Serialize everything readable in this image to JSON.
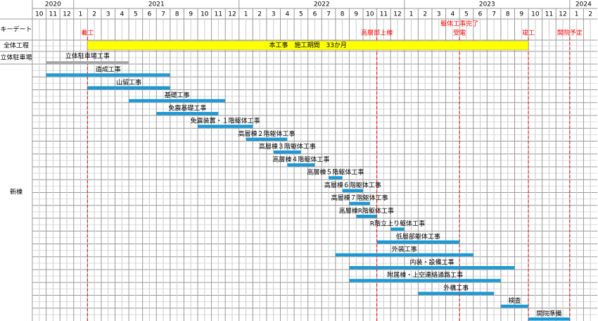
{
  "chart_data": {
    "type": "gantt",
    "years": [
      "2020",
      "2021",
      "2022",
      "2023",
      "2024"
    ],
    "months": [
      10,
      11,
      12,
      1,
      2,
      3,
      4,
      5,
      6,
      7,
      8,
      9,
      10,
      11,
      12,
      1,
      2,
      3,
      4,
      5,
      6,
      7,
      8,
      9,
      10,
      11,
      12,
      1,
      2,
      3,
      4,
      5,
      6,
      7,
      8,
      9,
      10,
      11,
      12,
      1,
      2
    ],
    "xlim": [
      0,
      41
    ],
    "keydate_label": "キーデート",
    "milestones": [
      {
        "label": "着工",
        "at": 4
      },
      {
        "label": "高層部上棟",
        "at": 25
      },
      {
        "label": "躯体工事完了",
        "sublabel": "受電",
        "at": 31
      },
      {
        "label": "竣工",
        "at": 36
      },
      {
        "label": "開院予定",
        "at": 39
      }
    ],
    "overall": {
      "row_label": "全体工程",
      "label": "本工事　施工期間　33か月",
      "start": 4,
      "end": 36,
      "color": "#ffff00"
    },
    "parking": {
      "row_label": "立体駐車場",
      "label": "立体駐車場工事",
      "start": 1,
      "end": 7,
      "color": "#a6a6a6"
    },
    "group_label": "新棟",
    "bar_color": "#1c9ad6",
    "tasks": [
      {
        "label": "造成工事",
        "start": 1,
        "end": 10
      },
      {
        "label": "山留工事",
        "start": 4,
        "end": 10
      },
      {
        "label": "基礎工事",
        "start": 7,
        "end": 14
      },
      {
        "label": "免震基礎工事",
        "start": 9,
        "end": 13.5
      },
      {
        "label": "免震装置・１階躯体工事",
        "start": 12,
        "end": 16
      },
      {
        "label": "高層棟２階躯体工事",
        "start": 15.5,
        "end": 18.5
      },
      {
        "label": "高層棟３階躯体工事",
        "start": 17.5,
        "end": 19.5
      },
      {
        "label": "高層棟４階躯体工事",
        "start": 18.5,
        "end": 20.5
      },
      {
        "label": "高層棟５階躯体工事",
        "start": 21.5,
        "end": 22.5
      },
      {
        "label": "高層棟６階躯体工事",
        "start": 22.5,
        "end": 24
      },
      {
        "label": "高層棟７階躯体工事",
        "start": 23,
        "end": 24.5
      },
      {
        "label": "高層棟R階躯体工事",
        "start": 23.5,
        "end": 25
      },
      {
        "label": "R階立上り躯体工事",
        "start": 26,
        "end": 27
      },
      {
        "label": "低層部躯体工事",
        "start": 25,
        "end": 31
      },
      {
        "label": "外装工事",
        "start": 22,
        "end": 32
      },
      {
        "label": "内装・設備工事",
        "start": 23,
        "end": 35
      },
      {
        "label": "附属棟・上空連絡通路工事",
        "start": 23,
        "end": 34
      },
      {
        "label": "外構工事",
        "start": 28,
        "end": 33.5
      },
      {
        "label": "検査",
        "start": 34,
        "end": 36
      },
      {
        "label": "開院準備",
        "start": 36,
        "end": 39
      }
    ]
  }
}
